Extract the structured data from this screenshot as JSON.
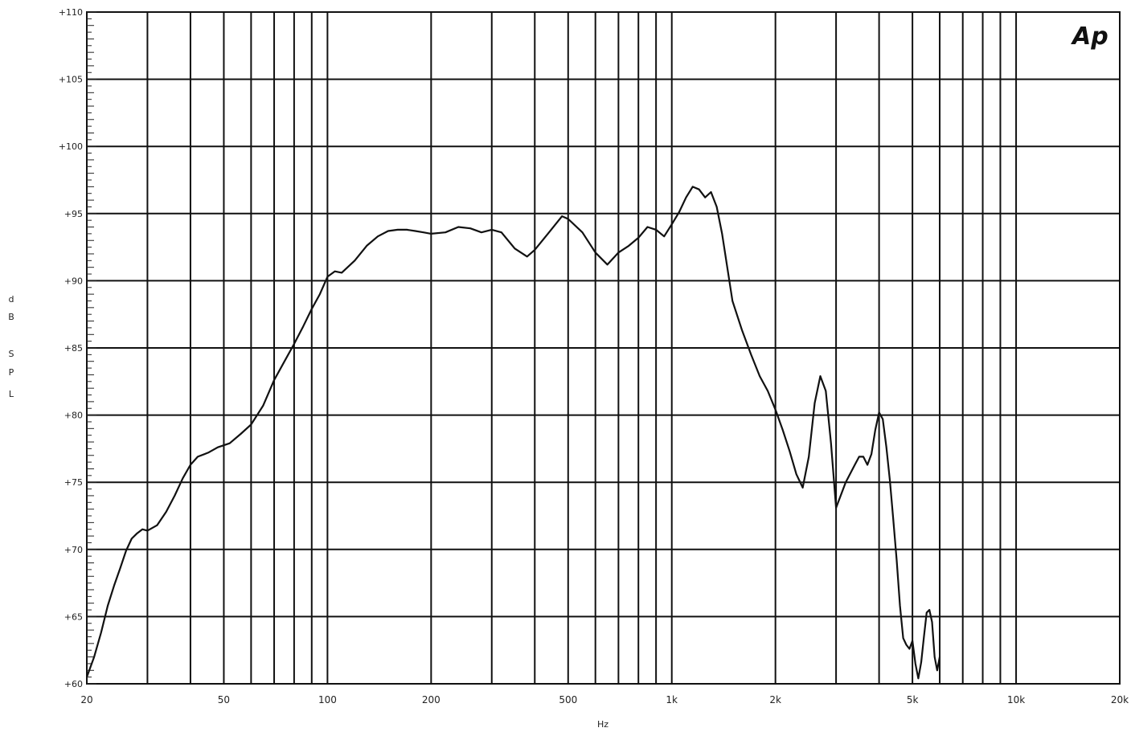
{
  "logo": "Ap",
  "chart_data": {
    "type": "line",
    "title": "",
    "xlabel": "Hz",
    "ylabel": [
      "d",
      "B",
      "S",
      "P",
      "L"
    ],
    "x_scale": "log",
    "xlim": [
      20,
      20000
    ],
    "ylim": [
      60,
      110
    ],
    "grid": true,
    "x_gridlines": [
      30,
      40,
      50,
      60,
      70,
      80,
      90,
      100,
      200,
      300,
      400,
      500,
      600,
      700,
      800,
      900,
      1000,
      2000,
      3000,
      4000,
      5000,
      6000,
      7000,
      8000,
      9000,
      10000
    ],
    "x_ticks": [
      {
        "value": 20,
        "label": "20"
      },
      {
        "value": 50,
        "label": "50"
      },
      {
        "value": 100,
        "label": "100"
      },
      {
        "value": 200,
        "label": "200"
      },
      {
        "value": 500,
        "label": "500"
      },
      {
        "value": 1000,
        "label": "1k"
      },
      {
        "value": 2000,
        "label": "2k"
      },
      {
        "value": 5000,
        "label": "5k"
      },
      {
        "value": 10000,
        "label": "10k"
      },
      {
        "value": 20000,
        "label": "20k"
      }
    ],
    "y_ticks": [
      {
        "value": 60,
        "label": "+60"
      },
      {
        "value": 65,
        "label": "+65"
      },
      {
        "value": 70,
        "label": "+70"
      },
      {
        "value": 75,
        "label": "+75"
      },
      {
        "value": 80,
        "label": "+80"
      },
      {
        "value": 85,
        "label": "+85"
      },
      {
        "value": 90,
        "label": "+90"
      },
      {
        "value": 95,
        "label": "+95"
      },
      {
        "value": 100,
        "label": "+100"
      },
      {
        "value": 105,
        "label": "+105"
      },
      {
        "value": 110,
        "label": "+110"
      }
    ],
    "series": [
      {
        "x": [
          20,
          21,
          22,
          23,
          24,
          25,
          26,
          27,
          28,
          29,
          30,
          32,
          34,
          36,
          38,
          40,
          42,
          45,
          48,
          52,
          56,
          60,
          65,
          70,
          75,
          80,
          85,
          90,
          95,
          100,
          105,
          110,
          120,
          130,
          140,
          150,
          160,
          170,
          180,
          190,
          200,
          220,
          240,
          260,
          280,
          300,
          320,
          350,
          380,
          400,
          440,
          480,
          500,
          550,
          600,
          650,
          700,
          750,
          800,
          850,
          900,
          950,
          1000,
          1050,
          1100,
          1150,
          1200,
          1250,
          1300,
          1350,
          1400,
          1500,
          1600,
          1700,
          1800,
          1900,
          2000,
          2100,
          2200,
          2300,
          2400,
          2500,
          2600,
          2700,
          2800,
          2900,
          3000,
          3200,
          3400,
          3500,
          3600,
          3700,
          3800,
          3900,
          4000,
          4100,
          4200,
          4300,
          4400,
          4500,
          4600,
          4700,
          4800,
          4900,
          5000,
          5100,
          5200,
          5300,
          5400,
          5500,
          5600,
          5700,
          5800,
          5900,
          6000
        ],
        "y": [
          60.5,
          62.0,
          63.8,
          65.8,
          67.3,
          68.6,
          69.9,
          70.8,
          71.2,
          71.5,
          71.4,
          71.8,
          72.8,
          74.0,
          75.3,
          76.3,
          76.9,
          77.2,
          77.6,
          77.9,
          78.6,
          79.3,
          80.7,
          82.6,
          84.0,
          85.3,
          86.6,
          87.9,
          89.0,
          90.3,
          90.7,
          90.6,
          91.5,
          92.6,
          93.3,
          93.7,
          93.8,
          93.8,
          93.7,
          93.6,
          93.5,
          93.6,
          94.0,
          93.9,
          93.6,
          93.8,
          93.6,
          92.4,
          91.8,
          92.3,
          93.6,
          94.8,
          94.6,
          93.6,
          92.1,
          91.2,
          92.1,
          92.6,
          93.2,
          94.0,
          93.8,
          93.3,
          94.2,
          95.1,
          96.2,
          97.0,
          96.8,
          96.2,
          96.6,
          95.5,
          93.5,
          88.5,
          86.3,
          84.5,
          82.9,
          81.8,
          80.4,
          78.9,
          77.3,
          75.6,
          74.6,
          76.9,
          80.9,
          82.9,
          81.8,
          77.9,
          73.1,
          75.0,
          76.3,
          76.9,
          76.9,
          76.3,
          77.1,
          78.9,
          80.2,
          79.7,
          77.6,
          75.1,
          72.2,
          69.2,
          65.8,
          63.4,
          62.9,
          62.6,
          63.2,
          61.5,
          60.4,
          61.6,
          63.5,
          65.3,
          65.5,
          64.6,
          62.0,
          61.0,
          62.0
        ]
      }
    ]
  }
}
